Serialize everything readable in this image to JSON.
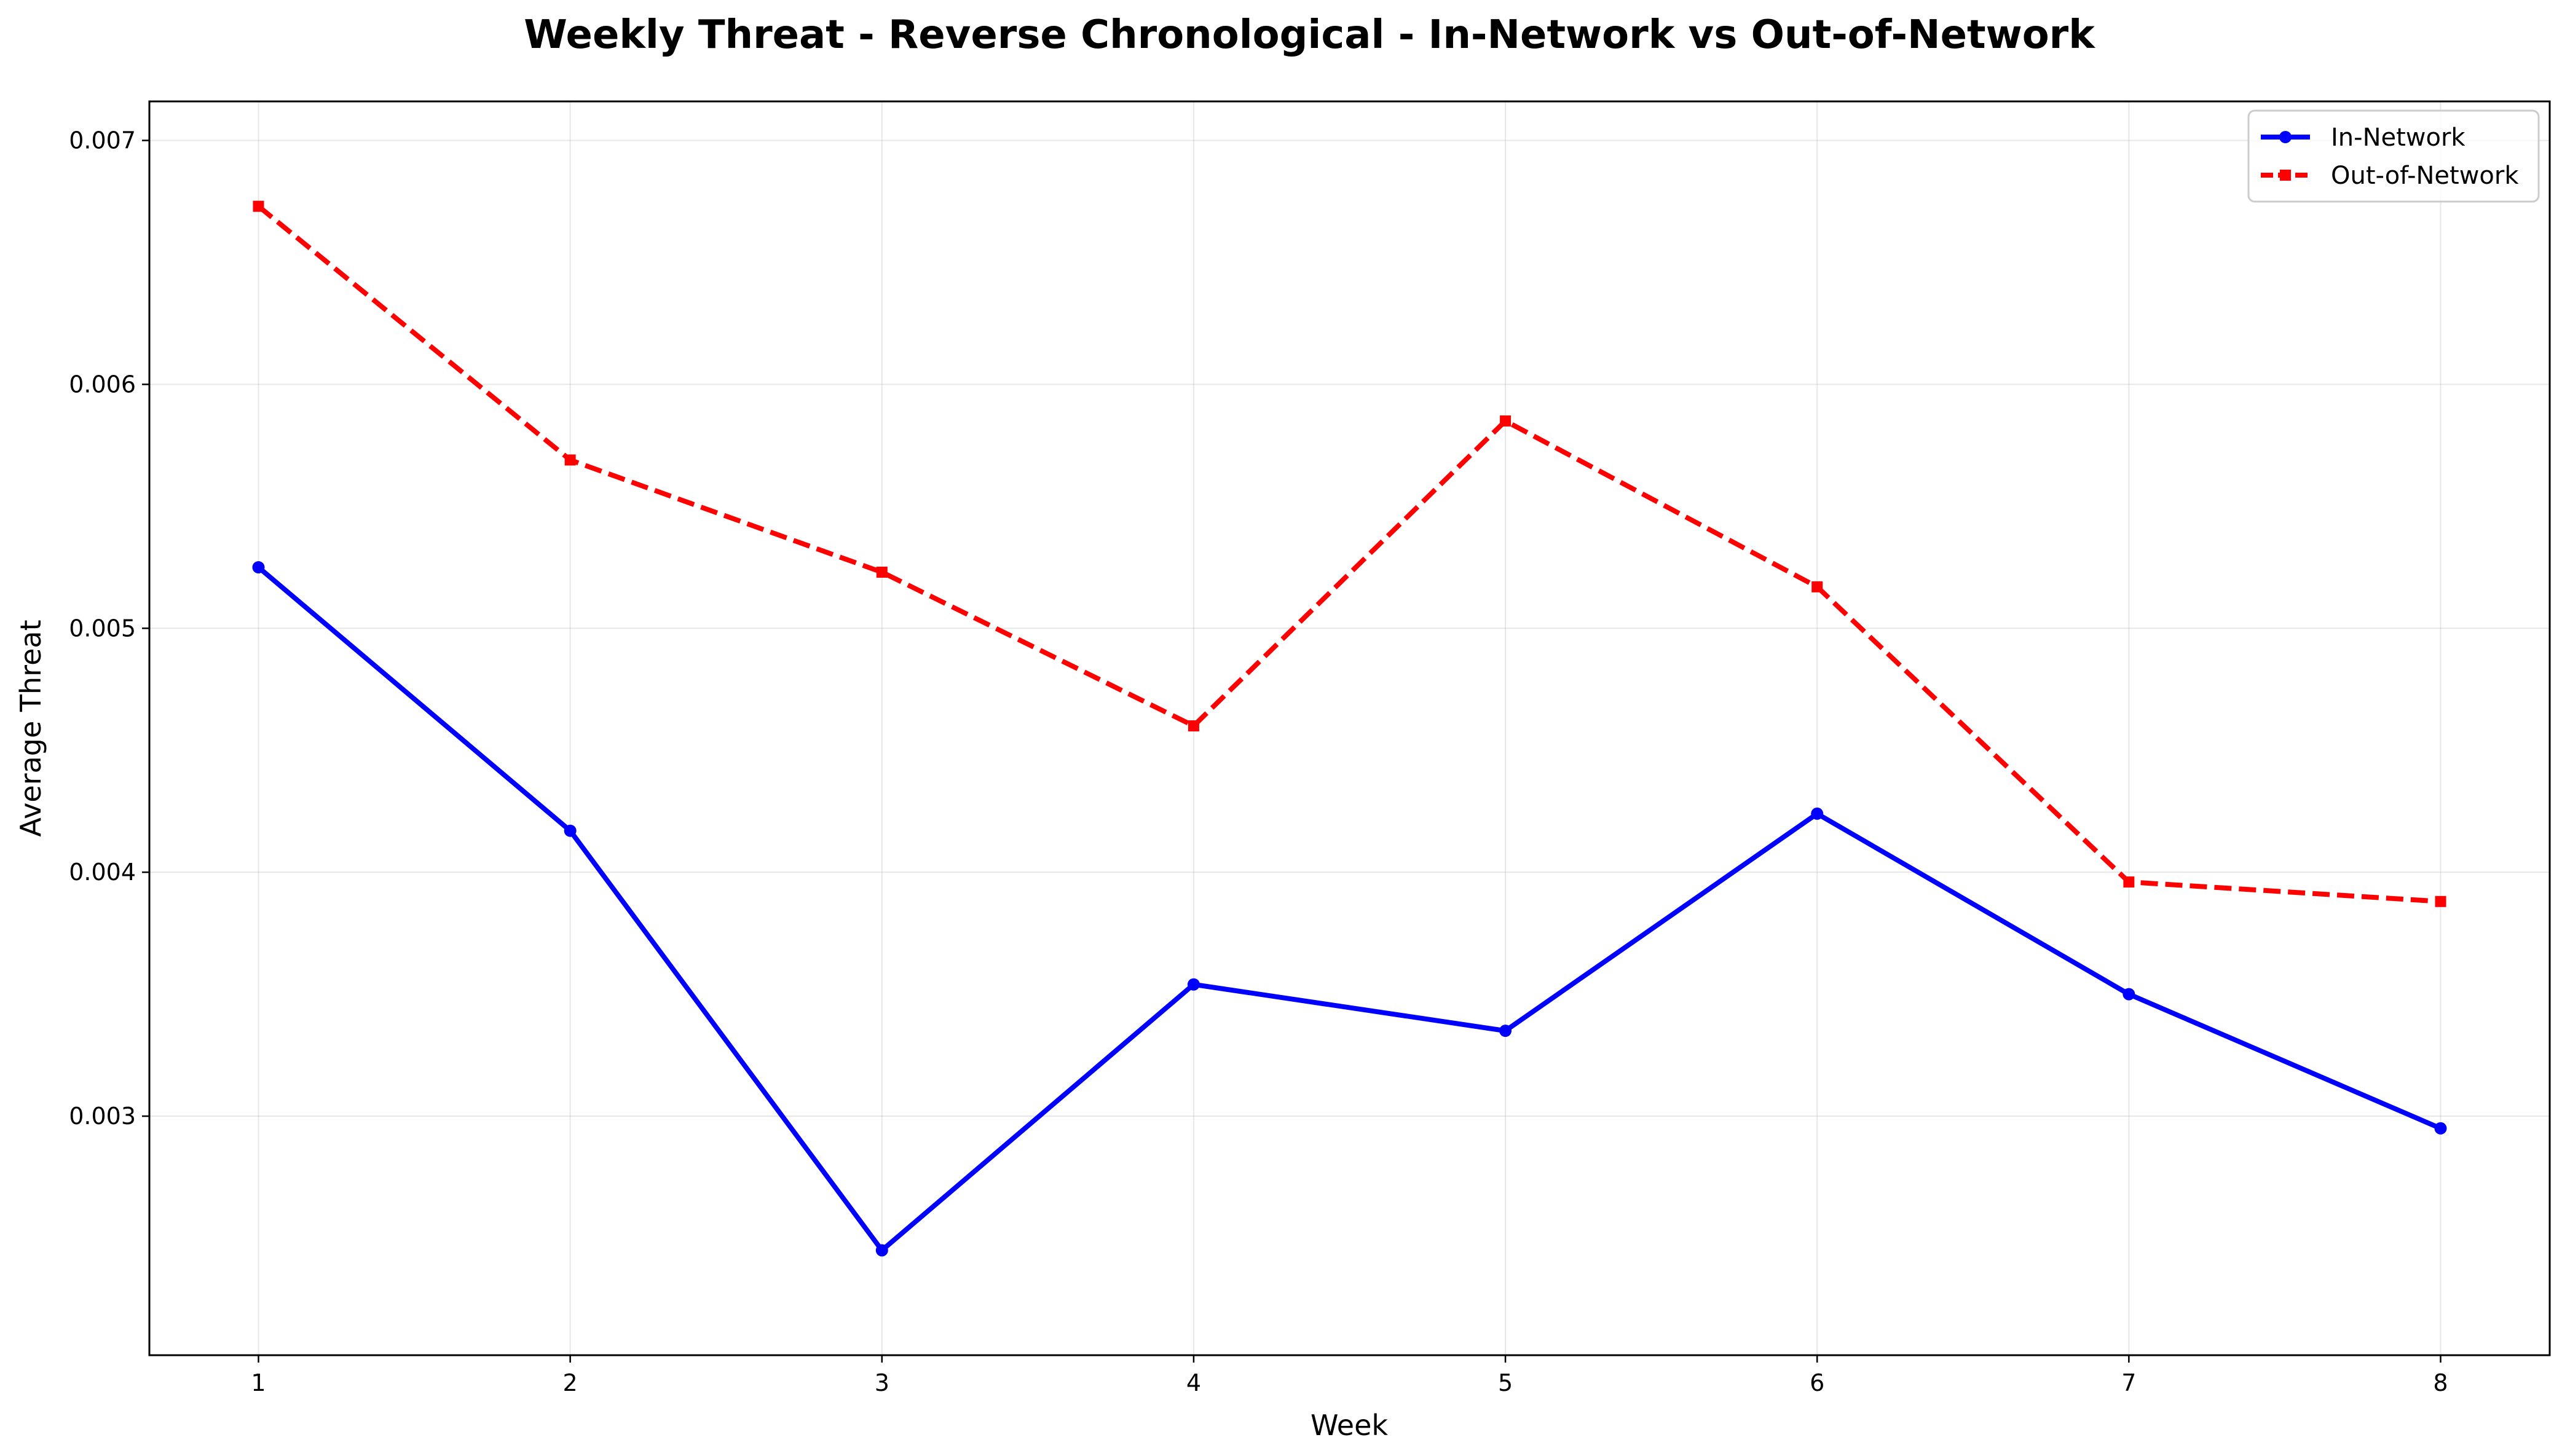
{
  "chart_data": {
    "type": "line",
    "title": "Weekly Threat - Reverse Chronological - In-Network vs Out-of-Network",
    "xlabel": "Week",
    "ylabel": "Average Threat",
    "x": [
      1,
      2,
      3,
      4,
      5,
      6,
      7,
      8
    ],
    "xlim": [
      0.65,
      8.35
    ],
    "ylim": [
      0.00202,
      0.00716
    ],
    "xticks": [
      1,
      2,
      3,
      4,
      5,
      6,
      7,
      8
    ],
    "xtick_labels": [
      "1",
      "2",
      "3",
      "4",
      "5",
      "6",
      "7",
      "8"
    ],
    "yticks": [
      0.003,
      0.004,
      0.005,
      0.006,
      0.007
    ],
    "ytick_labels": [
      "0.003",
      "0.004",
      "0.005",
      "0.006",
      "0.007"
    ],
    "grid": true,
    "legend_position": "top-right",
    "series": [
      {
        "name": "In-Network",
        "color": "#0000ff",
        "line_style": "solid",
        "marker": "circle",
        "values": [
          0.00525,
          0.00417,
          0.00245,
          0.00354,
          0.00335,
          0.00424,
          0.0035,
          0.00295
        ]
      },
      {
        "name": "Out-of-Network",
        "color": "#ff0000",
        "line_style": "dashed",
        "marker": "square",
        "values": [
          0.00673,
          0.00569,
          0.00523,
          0.0046,
          0.00585,
          0.00517,
          0.00396,
          0.00388
        ]
      }
    ]
  }
}
